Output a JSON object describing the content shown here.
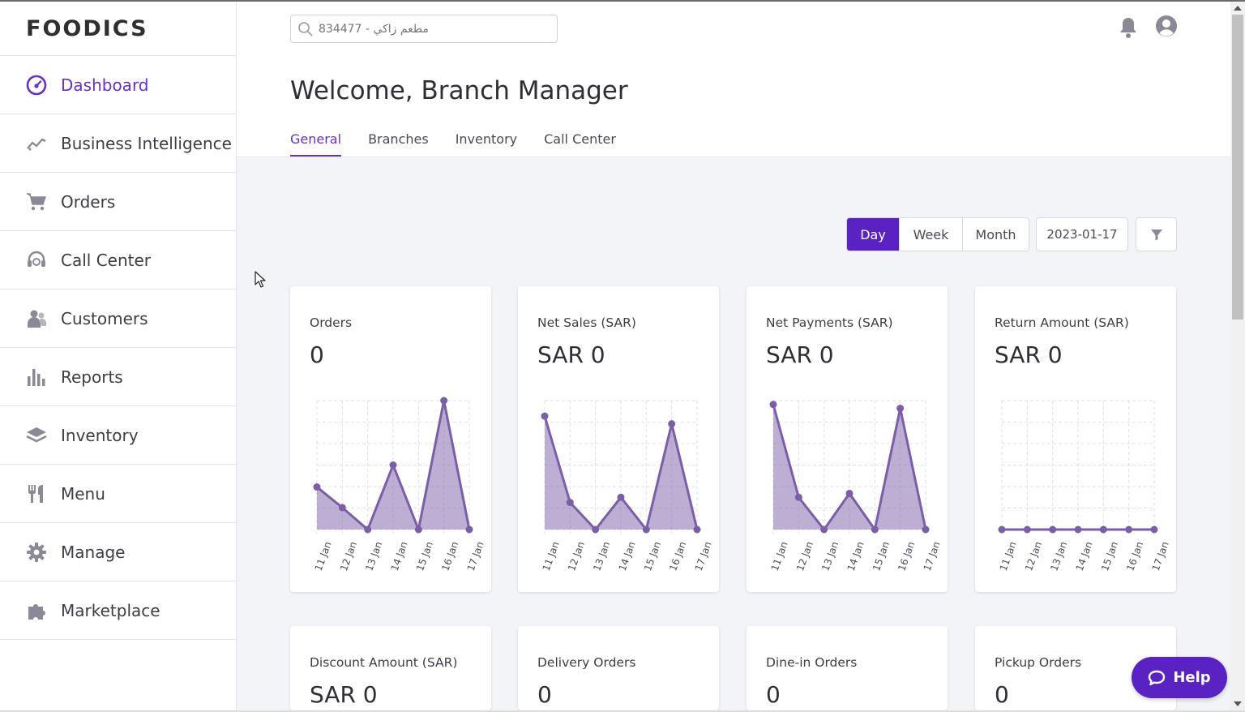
{
  "brand": {
    "logo_text": "FOODICS",
    "accent": "#5b22c3",
    "chart_color": "#7b5ea7"
  },
  "sidebar": {
    "items": [
      {
        "label": "Dashboard",
        "icon": "dashboard-gauge-icon",
        "active": true
      },
      {
        "label": "Business Intelligence",
        "icon": "trend-line-icon"
      },
      {
        "label": "Orders",
        "icon": "cart-icon"
      },
      {
        "label": "Call Center",
        "icon": "headset-icon"
      },
      {
        "label": "Customers",
        "icon": "users-icon"
      },
      {
        "label": "Reports",
        "icon": "bar-chart-icon"
      },
      {
        "label": "Inventory",
        "icon": "layers-icon"
      },
      {
        "label": "Menu",
        "icon": "fork-knife-icon"
      },
      {
        "label": "Manage",
        "icon": "gear-icon"
      },
      {
        "label": "Marketplace",
        "icon": "puzzle-icon"
      }
    ]
  },
  "header": {
    "search_placeholder": "مطعم زاكي - 834477",
    "welcome": "Welcome, Branch Manager",
    "tabs": [
      {
        "label": "General",
        "active": true
      },
      {
        "label": "Branches"
      },
      {
        "label": "Inventory"
      },
      {
        "label": "Call Center"
      }
    ]
  },
  "controls": {
    "periods": [
      {
        "label": "Day",
        "active": true
      },
      {
        "label": "Week"
      },
      {
        "label": "Month"
      }
    ],
    "date": "2023-01-17",
    "filter_icon": "funnel-icon"
  },
  "cards": [
    {
      "title": "Orders",
      "value": "0"
    },
    {
      "title": "Net Sales (SAR)",
      "value": "SAR 0"
    },
    {
      "title": "Net Payments (SAR)",
      "value": "SAR 0"
    },
    {
      "title": "Return Amount (SAR)",
      "value": "SAR 0"
    },
    {
      "title": "Discount Amount (SAR)",
      "value": "SAR 0"
    },
    {
      "title": "Delivery Orders",
      "value": "0"
    },
    {
      "title": "Dine-in Orders",
      "value": "0"
    },
    {
      "title": "Pickup Orders",
      "value": "0"
    }
  ],
  "chart_data": [
    {
      "type": "area",
      "card": "Orders",
      "categories": [
        "11 Jan",
        "12 Jan",
        "13 Jan",
        "14 Jan",
        "15 Jan",
        "16 Jan",
        "17 Jan"
      ],
      "values": [
        0.33,
        0.17,
        0,
        0.5,
        0,
        1.0,
        0
      ],
      "ylim": [
        0,
        1
      ],
      "grid": true
    },
    {
      "type": "area",
      "card": "Net Sales (SAR)",
      "categories": [
        "11 Jan",
        "12 Jan",
        "13 Jan",
        "14 Jan",
        "15 Jan",
        "16 Jan",
        "17 Jan"
      ],
      "values": [
        0.88,
        0.21,
        0,
        0.25,
        0,
        0.82,
        0
      ],
      "ylim": [
        0,
        1
      ],
      "grid": true
    },
    {
      "type": "area",
      "card": "Net Payments (SAR)",
      "categories": [
        "11 Jan",
        "12 Jan",
        "13 Jan",
        "14 Jan",
        "15 Jan",
        "16 Jan",
        "17 Jan"
      ],
      "values": [
        0.97,
        0.25,
        0,
        0.28,
        0,
        0.94,
        0
      ],
      "ylim": [
        0,
        1
      ],
      "grid": true
    },
    {
      "type": "area",
      "card": "Return Amount (SAR)",
      "categories": [
        "11 Jan",
        "12 Jan",
        "13 Jan",
        "14 Jan",
        "15 Jan",
        "16 Jan",
        "17 Jan"
      ],
      "values": [
        0,
        0,
        0,
        0,
        0,
        0,
        0
      ],
      "ylim": [
        0,
        1
      ],
      "grid": true
    }
  ],
  "help": {
    "label": "Help"
  }
}
